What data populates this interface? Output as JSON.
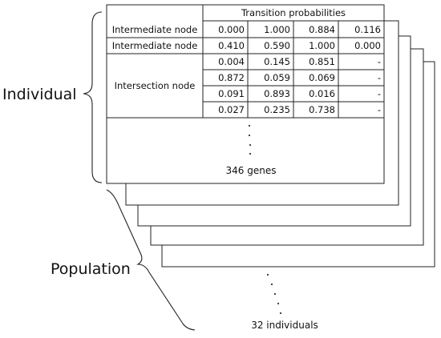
{
  "table": {
    "header": "Transition probabilities",
    "rows": [
      {
        "label": "Intermediate node",
        "values": [
          "0.000",
          "1.000",
          "0.884",
          "0.116"
        ]
      },
      {
        "label": "Intermediate node",
        "values": [
          "0.410",
          "0.590",
          "1.000",
          "0.000"
        ]
      }
    ],
    "intersection": {
      "label": "Intersection node",
      "rows": [
        [
          "0.004",
          "0.145",
          "0.851",
          "-"
        ],
        [
          "0.872",
          "0.059",
          "0.069",
          "-"
        ],
        [
          "0.091",
          "0.893",
          "0.016",
          "-"
        ],
        [
          "0.027",
          "0.235",
          "0.738",
          "-"
        ]
      ]
    },
    "genes_label": "346 genes"
  },
  "labels": {
    "individual": "Individual",
    "population": "Population",
    "individuals_count": "32 individuals"
  }
}
